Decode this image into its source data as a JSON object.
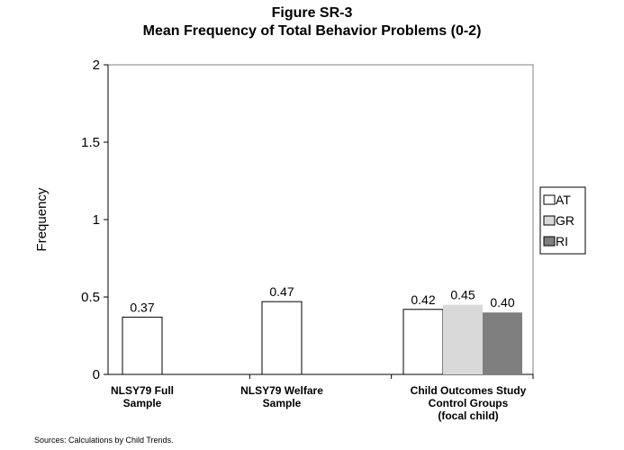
{
  "chart_data": {
    "type": "bar",
    "title": "Figure SR-3",
    "subtitle": "Mean Frequency of Total Behavior Problems (0-2)",
    "ylabel": "Frequency",
    "xlabel": "",
    "ylim": [
      0,
      2
    ],
    "yticks": [
      "0",
      "0.5",
      "1",
      "1.5",
      "2"
    ],
    "grid": false,
    "legend_position": "right",
    "groups": [
      {
        "label": [
          "NLSY79 Full",
          "Sample"
        ],
        "bars": [
          {
            "series": "AT",
            "value": 0.37,
            "label": "0.37"
          }
        ]
      },
      {
        "label": [
          "NLSY79 Welfare",
          "Sample"
        ],
        "bars": [
          {
            "series": "AT",
            "value": 0.47,
            "label": "0.47"
          }
        ]
      },
      {
        "label": [
          "Child Outcomes Study",
          "Control Groups",
          "(focal child)"
        ],
        "bars": [
          {
            "series": "AT",
            "value": 0.42,
            "label": "0.42"
          },
          {
            "series": "GR",
            "value": 0.45,
            "label": "0.45"
          },
          {
            "series": "RI",
            "value": 0.4,
            "label": "0.40"
          }
        ]
      }
    ],
    "series": [
      {
        "name": "AT",
        "color": "#ffffff"
      },
      {
        "name": "GR",
        "color": "#d9d9d9"
      },
      {
        "name": "RI",
        "color": "#7f7f7f"
      }
    ]
  },
  "source": "Sources:  Calculations by Child Trends."
}
